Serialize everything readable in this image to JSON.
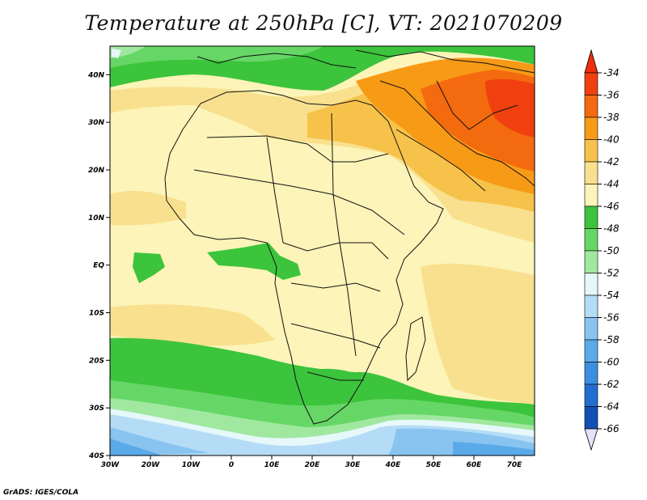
{
  "title": "Temperature at 250hPa [C], VT: 2021070209",
  "footer": "GrADS: IGES/COLA",
  "map": {
    "lon_range": [
      -30,
      75
    ],
    "lat_range": [
      -40,
      46
    ],
    "x_ticks": [
      "30W",
      "20W",
      "10W",
      "0",
      "10E",
      "20E",
      "30E",
      "40E",
      "50E",
      "60E",
      "70E"
    ],
    "y_ticks": [
      "40N",
      "30N",
      "20N",
      "10N",
      "EQ",
      "10S",
      "20S",
      "30S",
      "40S"
    ]
  },
  "colorbar": {
    "labels": [
      "-34",
      "-36",
      "-38",
      "-40",
      "-42",
      "-44",
      "-46",
      "-48",
      "-50",
      "-52",
      "-54",
      "-56",
      "-58",
      "-60",
      "-62",
      "-64",
      "-66"
    ],
    "colors": [
      "#f04010",
      "#f46a0e",
      "#f79a16",
      "#f7c24a",
      "#f9e08e",
      "#fcf4b8",
      "#3cc43c",
      "#66d766",
      "#a0e8a0",
      "#e6f8fa",
      "#b5dcf6",
      "#89c4f0",
      "#5aaaea",
      "#3b8fe0",
      "#226ed0",
      "#1250b4",
      "#0a2070"
    ],
    "min_arrow_color": "#e3e1fc",
    "max_arrow_color": "#ee2e0c"
  }
}
